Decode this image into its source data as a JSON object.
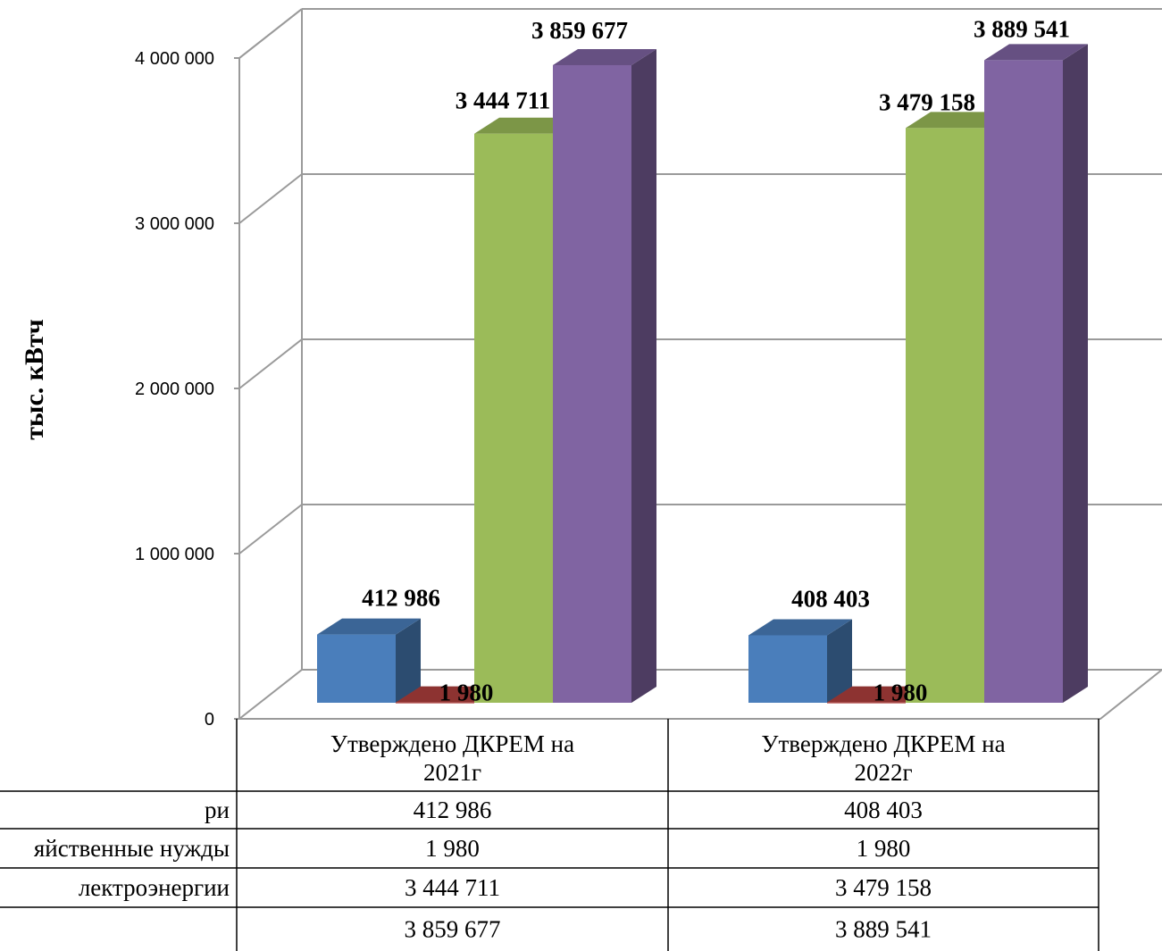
{
  "chart_data": {
    "type": "bar",
    "ylabel": "тыс. кВтч",
    "categories": [
      "Утверждено ДКРЕМ на 2021г",
      "Утверждено ДКРЕМ на 2022г"
    ],
    "category_lines": [
      [
        "Утверждено ДКРЕМ на",
        "2021г"
      ],
      [
        "Утверждено ДКРЕМ на",
        "2022г"
      ]
    ],
    "series": [
      {
        "row_label": "ри",
        "values": [
          412986,
          408403
        ],
        "labels": [
          "412 986",
          "408 403"
        ],
        "color": "#4a7ebb"
      },
      {
        "row_label": "яйственные нужды",
        "values": [
          1980,
          1980
        ],
        "labels": [
          "1 980",
          "1 980"
        ],
        "color": "#b0403d"
      },
      {
        "row_label": "лектроэнергии",
        "values": [
          3444711,
          3479158
        ],
        "labels": [
          "3 444 711",
          "3 479 158"
        ],
        "color": "#9bbb59"
      },
      {
        "row_label": "",
        "values": [
          3859677,
          3889541
        ],
        "labels": [
          "3 859 677",
          "3 889 541"
        ],
        "color": "#8064a2"
      }
    ],
    "yticks": [
      "0",
      "1 000 000",
      "2 000 000",
      "3 000 000",
      "4 000 000"
    ],
    "ylim": [
      0,
      4000000
    ],
    "grid": true,
    "legend": "table-below"
  }
}
